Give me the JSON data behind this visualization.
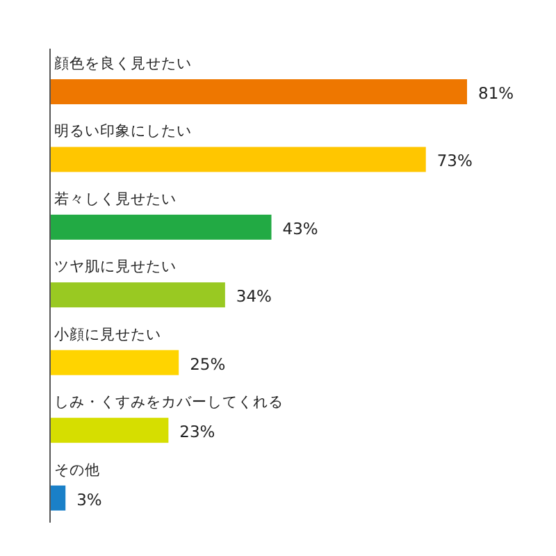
{
  "chart_data": {
    "type": "bar",
    "orientation": "horizontal",
    "categories": [
      "顔色を良く見せたい",
      "明るい印象にしたい",
      "若々しく見せたい",
      "ツヤ肌に見せたい",
      "小顔に見せたい",
      "しみ・くすみをカバーしてくれる",
      "その他"
    ],
    "values": [
      81,
      73,
      43,
      34,
      25,
      23,
      3
    ],
    "colors": [
      "#ee7700",
      "#ffc600",
      "#22aa44",
      "#99c922",
      "#ffd400",
      "#d6de00",
      "#1a80c8"
    ],
    "value_labels": [
      "81%",
      "73%",
      "43%",
      "34%",
      "25%",
      "23%",
      "3%"
    ]
  }
}
